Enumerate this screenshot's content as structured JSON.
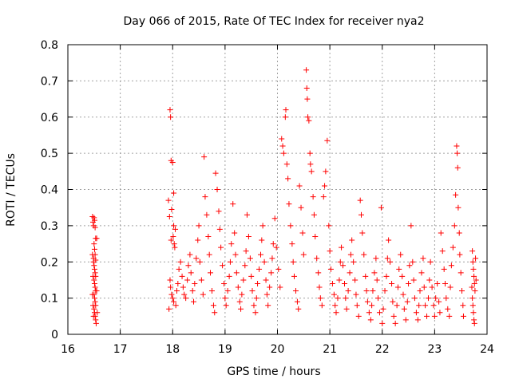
{
  "chart_data": {
    "type": "scatter",
    "title": "Day 066 of 2015, Rate Of TEC Index for receiver nya2",
    "xlabel": "GPS time / hours",
    "ylabel": "ROTI / TECUs",
    "xlim": [
      16,
      24
    ],
    "ylim": [
      0,
      0.8
    ],
    "x_ticks": [
      "16",
      "17",
      "18",
      "19",
      "20",
      "21",
      "22",
      "23",
      "24"
    ],
    "y_ticks": [
      "0",
      "0.1",
      "0.2",
      "0.3",
      "0.4",
      "0.5",
      "0.6",
      "0.7",
      "0.8"
    ],
    "grid": true,
    "legend": "none",
    "marker": "plus",
    "color": "#ff0000",
    "series": [
      {
        "points": [
          [
            16.47,
            0.325
          ],
          [
            16.48,
            0.31
          ],
          [
            16.49,
            0.3
          ],
          [
            16.5,
            0.322
          ],
          [
            16.51,
            0.315
          ],
          [
            16.52,
            0.295
          ],
          [
            16.53,
            0.265
          ],
          [
            16.5,
            0.25
          ],
          [
            16.51,
            0.235
          ],
          [
            16.52,
            0.22
          ],
          [
            16.53,
            0.205
          ],
          [
            16.5,
            0.19
          ],
          [
            16.51,
            0.18
          ],
          [
            16.52,
            0.17
          ],
          [
            16.53,
            0.16
          ],
          [
            16.5,
            0.15
          ],
          [
            16.51,
            0.14
          ],
          [
            16.52,
            0.13
          ],
          [
            16.53,
            0.12
          ],
          [
            16.5,
            0.11
          ],
          [
            16.51,
            0.1
          ],
          [
            16.52,
            0.09
          ],
          [
            16.53,
            0.08
          ],
          [
            16.5,
            0.07
          ],
          [
            16.51,
            0.06
          ],
          [
            16.52,
            0.05
          ],
          [
            16.53,
            0.04
          ],
          [
            16.54,
            0.03
          ],
          [
            16.55,
            0.265
          ],
          [
            16.49,
            0.2
          ],
          [
            16.48,
            0.16
          ],
          [
            16.47,
            0.11
          ],
          [
            16.48,
            0.08
          ],
          [
            16.49,
            0.05
          ],
          [
            16.55,
            0.12
          ],
          [
            16.56,
            0.06
          ],
          [
            16.49,
            0.21
          ],
          [
            16.47,
            0.22
          ],
          [
            17.95,
            0.62
          ],
          [
            17.96,
            0.6
          ],
          [
            17.97,
            0.48
          ],
          [
            18.0,
            0.475
          ],
          [
            18.02,
            0.39
          ],
          [
            17.92,
            0.37
          ],
          [
            17.94,
            0.325
          ],
          [
            17.98,
            0.345
          ],
          [
            18.02,
            0.3
          ],
          [
            18.05,
            0.29
          ],
          [
            18.01,
            0.27
          ],
          [
            17.97,
            0.26
          ],
          [
            18.03,
            0.25
          ],
          [
            18.04,
            0.24
          ],
          [
            17.95,
            0.15
          ],
          [
            17.96,
            0.13
          ],
          [
            17.98,
            0.11
          ],
          [
            18.0,
            0.1
          ],
          [
            18.02,
            0.09
          ],
          [
            17.93,
            0.07
          ],
          [
            18.06,
            0.08
          ],
          [
            18.08,
            0.12
          ],
          [
            18.1,
            0.14
          ],
          [
            18.12,
            0.18
          ],
          [
            18.15,
            0.2
          ],
          [
            18.18,
            0.16
          ],
          [
            18.2,
            0.13
          ],
          [
            18.22,
            0.11
          ],
          [
            18.25,
            0.1
          ],
          [
            18.28,
            0.15
          ],
          [
            18.3,
            0.19
          ],
          [
            18.33,
            0.22
          ],
          [
            18.35,
            0.17
          ],
          [
            18.38,
            0.12
          ],
          [
            18.4,
            0.09
          ],
          [
            18.42,
            0.14
          ],
          [
            18.45,
            0.21
          ],
          [
            18.48,
            0.26
          ],
          [
            18.5,
            0.3
          ],
          [
            18.52,
            0.2
          ],
          [
            18.55,
            0.15
          ],
          [
            18.58,
            0.11
          ],
          [
            18.6,
            0.49
          ],
          [
            18.62,
            0.38
          ],
          [
            18.65,
            0.33
          ],
          [
            18.68,
            0.27
          ],
          [
            18.7,
            0.22
          ],
          [
            18.72,
            0.17
          ],
          [
            18.75,
            0.12
          ],
          [
            18.78,
            0.08
          ],
          [
            18.8,
            0.06
          ],
          [
            18.82,
            0.445
          ],
          [
            18.85,
            0.4
          ],
          [
            18.88,
            0.34
          ],
          [
            18.9,
            0.29
          ],
          [
            18.92,
            0.24
          ],
          [
            18.95,
            0.19
          ],
          [
            18.98,
            0.14
          ],
          [
            19.0,
            0.1
          ],
          [
            19.02,
            0.08
          ],
          [
            19.05,
            0.12
          ],
          [
            19.08,
            0.16
          ],
          [
            19.1,
            0.2
          ],
          [
            19.12,
            0.25
          ],
          [
            19.15,
            0.36
          ],
          [
            19.18,
            0.28
          ],
          [
            19.2,
            0.22
          ],
          [
            19.22,
            0.17
          ],
          [
            19.25,
            0.13
          ],
          [
            19.28,
            0.09
          ],
          [
            19.3,
            0.07
          ],
          [
            19.32,
            0.11
          ],
          [
            19.35,
            0.15
          ],
          [
            19.38,
            0.19
          ],
          [
            19.4,
            0.23
          ],
          [
            19.42,
            0.33
          ],
          [
            19.45,
            0.27
          ],
          [
            19.48,
            0.21
          ],
          [
            19.5,
            0.16
          ],
          [
            19.52,
            0.12
          ],
          [
            19.55,
            0.08
          ],
          [
            19.58,
            0.06
          ],
          [
            19.6,
            0.1
          ],
          [
            19.62,
            0.14
          ],
          [
            19.65,
            0.18
          ],
          [
            19.68,
            0.22
          ],
          [
            19.7,
            0.26
          ],
          [
            19.72,
            0.3
          ],
          [
            19.75,
            0.2
          ],
          [
            19.78,
            0.15
          ],
          [
            19.8,
            0.11
          ],
          [
            19.82,
            0.08
          ],
          [
            19.85,
            0.13
          ],
          [
            19.88,
            0.17
          ],
          [
            19.9,
            0.21
          ],
          [
            19.92,
            0.25
          ],
          [
            19.95,
            0.32
          ],
          [
            19.98,
            0.24
          ],
          [
            20.02,
            0.18
          ],
          [
            20.05,
            0.13
          ],
          [
            20.08,
            0.54
          ],
          [
            20.1,
            0.52
          ],
          [
            20.12,
            0.5
          ],
          [
            20.15,
            0.6
          ],
          [
            20.16,
            0.62
          ],
          [
            20.18,
            0.47
          ],
          [
            20.2,
            0.43
          ],
          [
            20.22,
            0.36
          ],
          [
            20.25,
            0.3
          ],
          [
            20.28,
            0.25
          ],
          [
            20.3,
            0.2
          ],
          [
            20.32,
            0.16
          ],
          [
            20.35,
            0.12
          ],
          [
            20.38,
            0.09
          ],
          [
            20.4,
            0.07
          ],
          [
            20.42,
            0.41
          ],
          [
            20.45,
            0.35
          ],
          [
            20.48,
            0.28
          ],
          [
            20.5,
            0.22
          ],
          [
            20.55,
            0.73
          ],
          [
            20.56,
            0.68
          ],
          [
            20.57,
            0.65
          ],
          [
            20.58,
            0.6
          ],
          [
            20.6,
            0.59
          ],
          [
            20.62,
            0.5
          ],
          [
            20.63,
            0.47
          ],
          [
            20.65,
            0.45
          ],
          [
            20.68,
            0.38
          ],
          [
            20.7,
            0.33
          ],
          [
            20.72,
            0.27
          ],
          [
            20.75,
            0.21
          ],
          [
            20.78,
            0.17
          ],
          [
            20.8,
            0.13
          ],
          [
            20.82,
            0.1
          ],
          [
            20.85,
            0.08
          ],
          [
            20.88,
            0.38
          ],
          [
            20.9,
            0.41
          ],
          [
            20.92,
            0.45
          ],
          [
            20.95,
            0.535
          ],
          [
            20.98,
            0.3
          ],
          [
            21.0,
            0.23
          ],
          [
            21.02,
            0.18
          ],
          [
            21.05,
            0.14
          ],
          [
            21.08,
            0.11
          ],
          [
            21.1,
            0.08
          ],
          [
            21.12,
            0.06
          ],
          [
            21.15,
            0.1
          ],
          [
            21.18,
            0.15
          ],
          [
            21.2,
            0.2
          ],
          [
            21.22,
            0.24
          ],
          [
            21.25,
            0.19
          ],
          [
            21.28,
            0.14
          ],
          [
            21.3,
            0.1
          ],
          [
            21.32,
            0.07
          ],
          [
            21.35,
            0.12
          ],
          [
            21.38,
            0.17
          ],
          [
            21.4,
            0.22
          ],
          [
            21.42,
            0.26
          ],
          [
            21.45,
            0.2
          ],
          [
            21.48,
            0.15
          ],
          [
            21.5,
            0.11
          ],
          [
            21.52,
            0.08
          ],
          [
            21.55,
            0.05
          ],
          [
            21.58,
            0.37
          ],
          [
            21.6,
            0.33
          ],
          [
            21.62,
            0.28
          ],
          [
            21.65,
            0.22
          ],
          [
            21.68,
            0.16
          ],
          [
            21.7,
            0.12
          ],
          [
            21.72,
            0.09
          ],
          [
            21.75,
            0.06
          ],
          [
            21.78,
            0.04
          ],
          [
            21.8,
            0.08
          ],
          [
            21.82,
            0.12
          ],
          [
            21.85,
            0.17
          ],
          [
            21.88,
            0.21
          ],
          [
            21.9,
            0.15
          ],
          [
            21.92,
            0.1
          ],
          [
            21.95,
            0.06
          ],
          [
            21.98,
            0.35
          ],
          [
            22.0,
            0.03
          ],
          [
            22.02,
            0.07
          ],
          [
            22.05,
            0.12
          ],
          [
            22.08,
            0.16
          ],
          [
            22.1,
            0.21
          ],
          [
            22.12,
            0.26
          ],
          [
            22.15,
            0.2
          ],
          [
            22.18,
            0.14
          ],
          [
            22.2,
            0.09
          ],
          [
            22.22,
            0.05
          ],
          [
            22.25,
            0.03
          ],
          [
            22.28,
            0.08
          ],
          [
            22.3,
            0.13
          ],
          [
            22.32,
            0.18
          ],
          [
            22.35,
            0.22
          ],
          [
            22.38,
            0.16
          ],
          [
            22.4,
            0.11
          ],
          [
            22.42,
            0.07
          ],
          [
            22.45,
            0.04
          ],
          [
            22.48,
            0.09
          ],
          [
            22.5,
            0.14
          ],
          [
            22.52,
            0.19
          ],
          [
            22.55,
            0.3
          ],
          [
            22.58,
            0.2
          ],
          [
            22.6,
            0.15
          ],
          [
            22.62,
            0.1
          ],
          [
            22.65,
            0.06
          ],
          [
            22.68,
            0.04
          ],
          [
            22.7,
            0.08
          ],
          [
            22.72,
            0.12
          ],
          [
            22.75,
            0.17
          ],
          [
            22.78,
            0.21
          ],
          [
            22.8,
            0.13
          ],
          [
            22.82,
            0.08
          ],
          [
            22.85,
            0.05
          ],
          [
            22.88,
            0.1
          ],
          [
            22.9,
            0.15
          ],
          [
            22.92,
            0.2
          ],
          [
            22.95,
            0.13
          ],
          [
            22.98,
            0.08
          ],
          [
            23.0,
            0.05
          ],
          [
            23.02,
            0.1
          ],
          [
            23.05,
            0.14
          ],
          [
            23.08,
            0.09
          ],
          [
            23.1,
            0.06
          ],
          [
            23.12,
            0.28
          ],
          [
            23.15,
            0.23
          ],
          [
            23.18,
            0.18
          ],
          [
            23.2,
            0.14
          ],
          [
            23.22,
            0.1
          ],
          [
            23.25,
            0.07
          ],
          [
            23.28,
            0.05
          ],
          [
            23.3,
            0.13
          ],
          [
            23.32,
            0.19
          ],
          [
            23.35,
            0.24
          ],
          [
            23.38,
            0.3
          ],
          [
            23.4,
            0.385
          ],
          [
            23.42,
            0.52
          ],
          [
            23.43,
            0.5
          ],
          [
            23.44,
            0.46
          ],
          [
            23.45,
            0.35
          ],
          [
            23.47,
            0.28
          ],
          [
            23.48,
            0.22
          ],
          [
            23.5,
            0.17
          ],
          [
            23.52,
            0.12
          ],
          [
            23.54,
            0.08
          ],
          [
            23.55,
            0.05
          ],
          [
            23.72,
            0.23
          ],
          [
            23.73,
            0.2
          ],
          [
            23.74,
            0.18
          ],
          [
            23.75,
            0.16
          ],
          [
            23.76,
            0.14
          ],
          [
            23.77,
            0.12
          ],
          [
            23.72,
            0.1
          ],
          [
            23.73,
            0.08
          ],
          [
            23.74,
            0.06
          ],
          [
            23.75,
            0.04
          ],
          [
            23.76,
            0.03
          ],
          [
            23.78,
            0.21
          ],
          [
            23.79,
            0.15
          ],
          [
            23.71,
            0.13
          ]
        ]
      }
    ]
  }
}
